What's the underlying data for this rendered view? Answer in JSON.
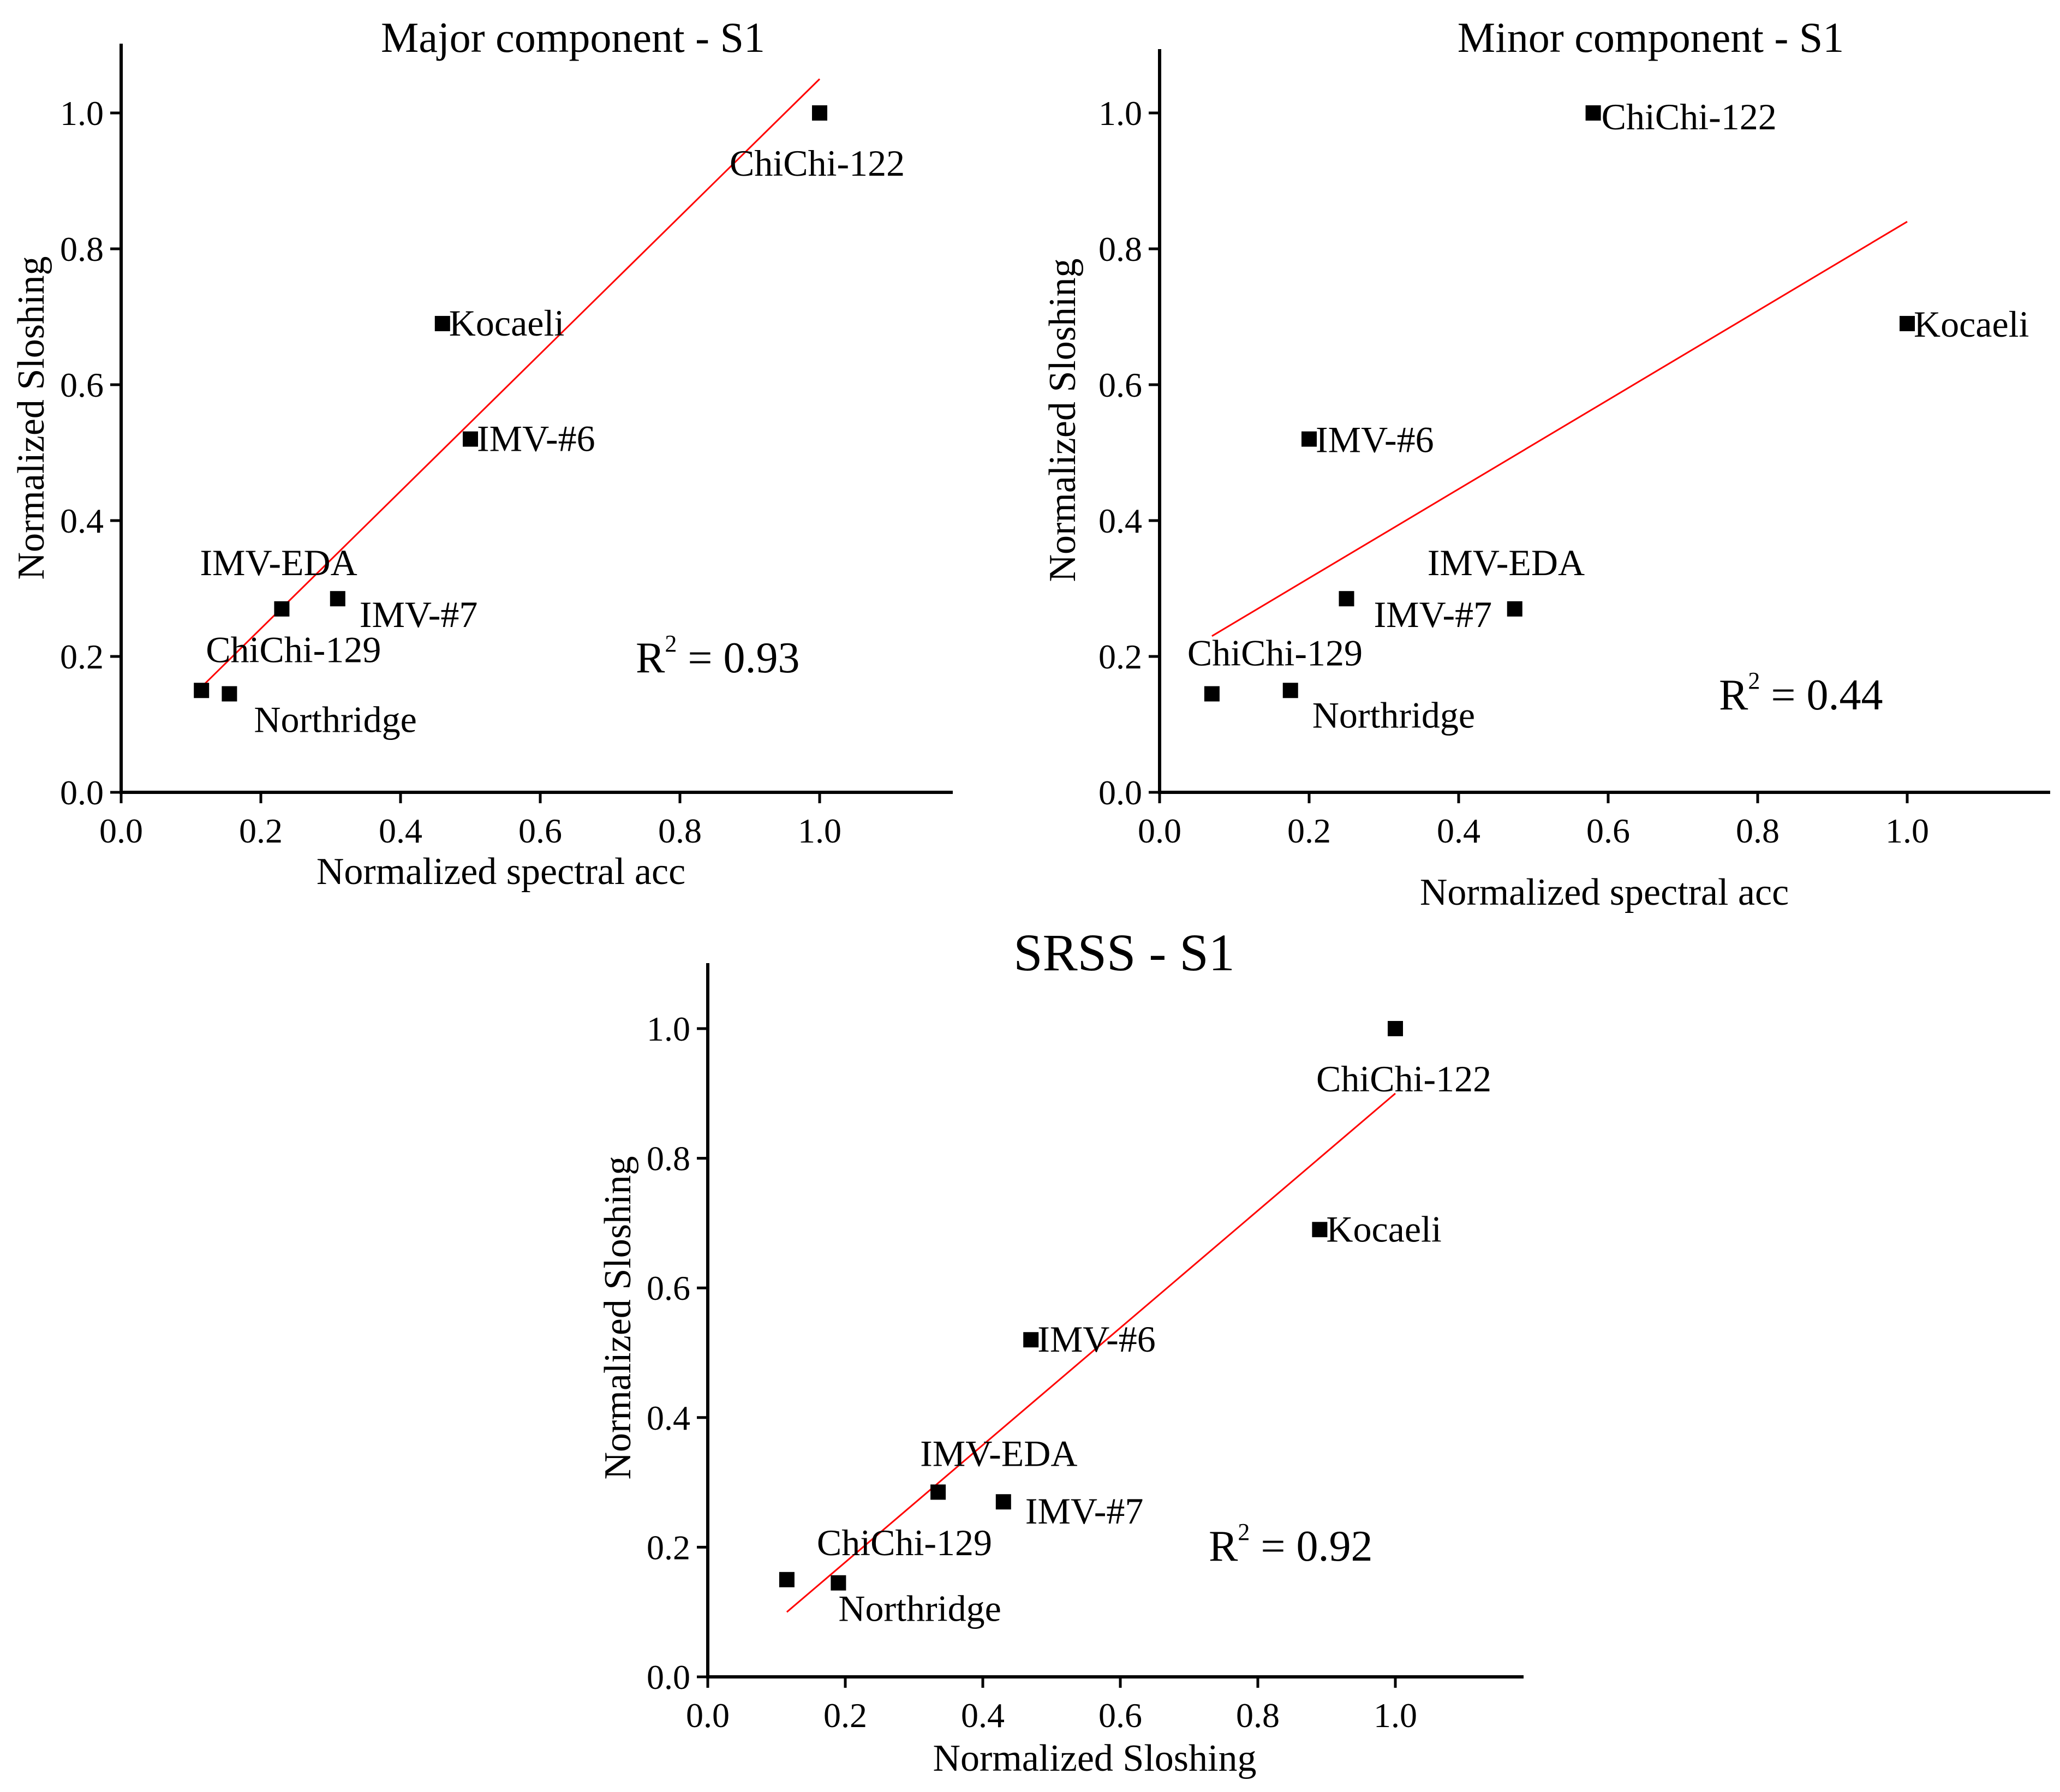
{
  "chart_data": [
    {
      "type": "scatter",
      "title": "Major component - S1",
      "xlabel": "Normalized spectral acc",
      "ylabel": "Normalized Sloshing",
      "xlim": [
        0.0,
        1.2
      ],
      "ylim": [
        0.0,
        1.1
      ],
      "xticks": [
        "0.0",
        "0.2",
        "0.4",
        "0.6",
        "0.8",
        "1.0"
      ],
      "yticks": [
        "0.0",
        "0.2",
        "0.4",
        "0.6",
        "0.8",
        "1.0"
      ],
      "grid": false,
      "points": [
        {
          "label": "ChiChi-122",
          "x": 1.0,
          "y": 1.0
        },
        {
          "label": "Kocaeli",
          "x": 0.46,
          "y": 0.69
        },
        {
          "label": "IMV-#6",
          "x": 0.5,
          "y": 0.52
        },
        {
          "label": "IMV-EDA",
          "x": 0.23,
          "y": 0.27
        },
        {
          "label": "IMV-#7",
          "x": 0.31,
          "y": 0.285
        },
        {
          "label": "ChiChi-129",
          "x": 0.115,
          "y": 0.15
        },
        {
          "label": "Northridge",
          "x": 0.155,
          "y": 0.145
        }
      ],
      "trendline": {
        "x": [
          0.115,
          1.0
        ],
        "y": [
          0.155,
          1.05
        ],
        "color": "#ff0000"
      },
      "r2_base": "R",
      "r2_exp": "2",
      "r2_value": " = 0.93"
    },
    {
      "type": "scatter",
      "title": "Minor component - S1",
      "xlabel": "Normalized spectral acc",
      "ylabel": "Normalized Sloshing",
      "xlim": [
        0.0,
        1.2
      ],
      "ylim": [
        0.0,
        1.1
      ],
      "xticks": [
        "0.0",
        "0.2",
        "0.4",
        "0.6",
        "0.8",
        "1.0"
      ],
      "yticks": [
        "0.0",
        "0.2",
        "0.4",
        "0.6",
        "0.8",
        "1.0"
      ],
      "grid": false,
      "points": [
        {
          "label": "ChiChi-122",
          "x": 0.58,
          "y": 1.0
        },
        {
          "label": "Kocaeli",
          "x": 1.0,
          "y": 0.69
        },
        {
          "label": "IMV-#6",
          "x": 0.2,
          "y": 0.52
        },
        {
          "label": "IMV-EDA",
          "x": 0.475,
          "y": 0.27
        },
        {
          "label": "IMV-#7",
          "x": 0.25,
          "y": 0.285
        },
        {
          "label": "ChiChi-129",
          "x": 0.07,
          "y": 0.145
        },
        {
          "label": "Northridge",
          "x": 0.175,
          "y": 0.15
        }
      ],
      "trendline": {
        "x": [
          0.07,
          1.0
        ],
        "y": [
          0.23,
          0.84
        ],
        "color": "#ff0000"
      },
      "r2_base": "R",
      "r2_exp": "2",
      "r2_value": " = 0.44"
    },
    {
      "type": "scatter",
      "title": "SRSS - S1",
      "xlabel": "Normalized Sloshing",
      "ylabel": "Normalized Sloshing",
      "xlim": [
        0.0,
        1.2
      ],
      "ylim": [
        0.0,
        1.1
      ],
      "xticks": [
        "0.0",
        "0.2",
        "0.4",
        "0.6",
        "0.8",
        "1.0"
      ],
      "yticks": [
        "0.0",
        "0.2",
        "0.4",
        "0.6",
        "0.8",
        "1.0"
      ],
      "grid": false,
      "points": [
        {
          "label": "ChiChi-122",
          "x": 1.0,
          "y": 1.0
        },
        {
          "label": "Kocaeli",
          "x": 0.89,
          "y": 0.69
        },
        {
          "label": "IMV-#6",
          "x": 0.47,
          "y": 0.52
        },
        {
          "label": "IMV-EDA",
          "x": 0.335,
          "y": 0.285
        },
        {
          "label": "IMV-#7",
          "x": 0.43,
          "y": 0.27
        },
        {
          "label": "ChiChi-129",
          "x": 0.115,
          "y": 0.15
        },
        {
          "label": "Northridge",
          "x": 0.19,
          "y": 0.145
        }
      ],
      "trendline": {
        "x": [
          0.115,
          1.0
        ],
        "y": [
          0.1,
          0.9
        ],
        "color": "#ff0000"
      },
      "r2_base": "R",
      "r2_exp": "2",
      "r2_value": " = 0.92"
    }
  ]
}
